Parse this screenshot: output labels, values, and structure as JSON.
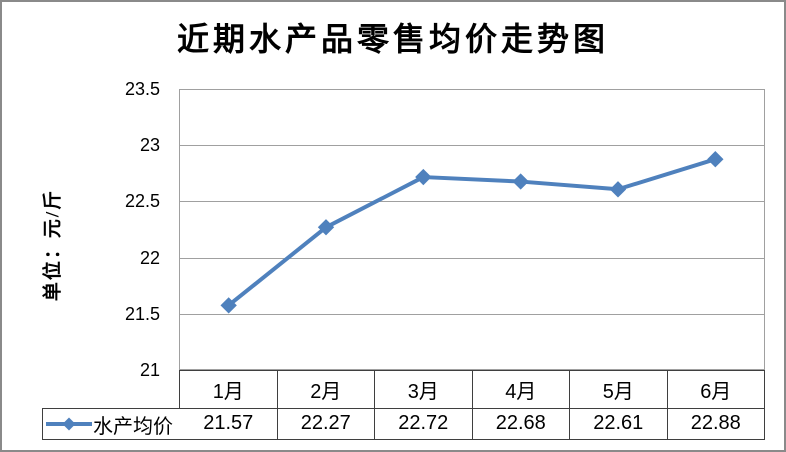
{
  "window": {
    "background": "#ffffff",
    "border_color": "#8a8a8a"
  },
  "chart_data": {
    "type": "line",
    "title": "近期水产品零售均价走势图",
    "y_axis_title": "单位：元/斤",
    "categories": [
      "1月",
      "2月",
      "3月",
      "4月",
      "5月",
      "6月"
    ],
    "series": [
      {
        "name": "水产均价",
        "values": [
          21.57,
          22.27,
          22.72,
          22.68,
          22.61,
          22.88
        ],
        "color": "#4f81bd",
        "marker": "diamond",
        "line_width": 4
      }
    ],
    "value_labels": [
      "21.57",
      "22.27",
      "22.72",
      "22.68",
      "22.61",
      "22.88"
    ],
    "ylim": [
      21,
      23.5
    ],
    "yticks": [
      23.5,
      23,
      22.5,
      22,
      21.5,
      21
    ],
    "grid": "horizontal",
    "gridline_color": "#a0a0a0",
    "table_border_color": "#3f3f3f",
    "legend_position": "bottom-left",
    "data_table_shown": true
  }
}
